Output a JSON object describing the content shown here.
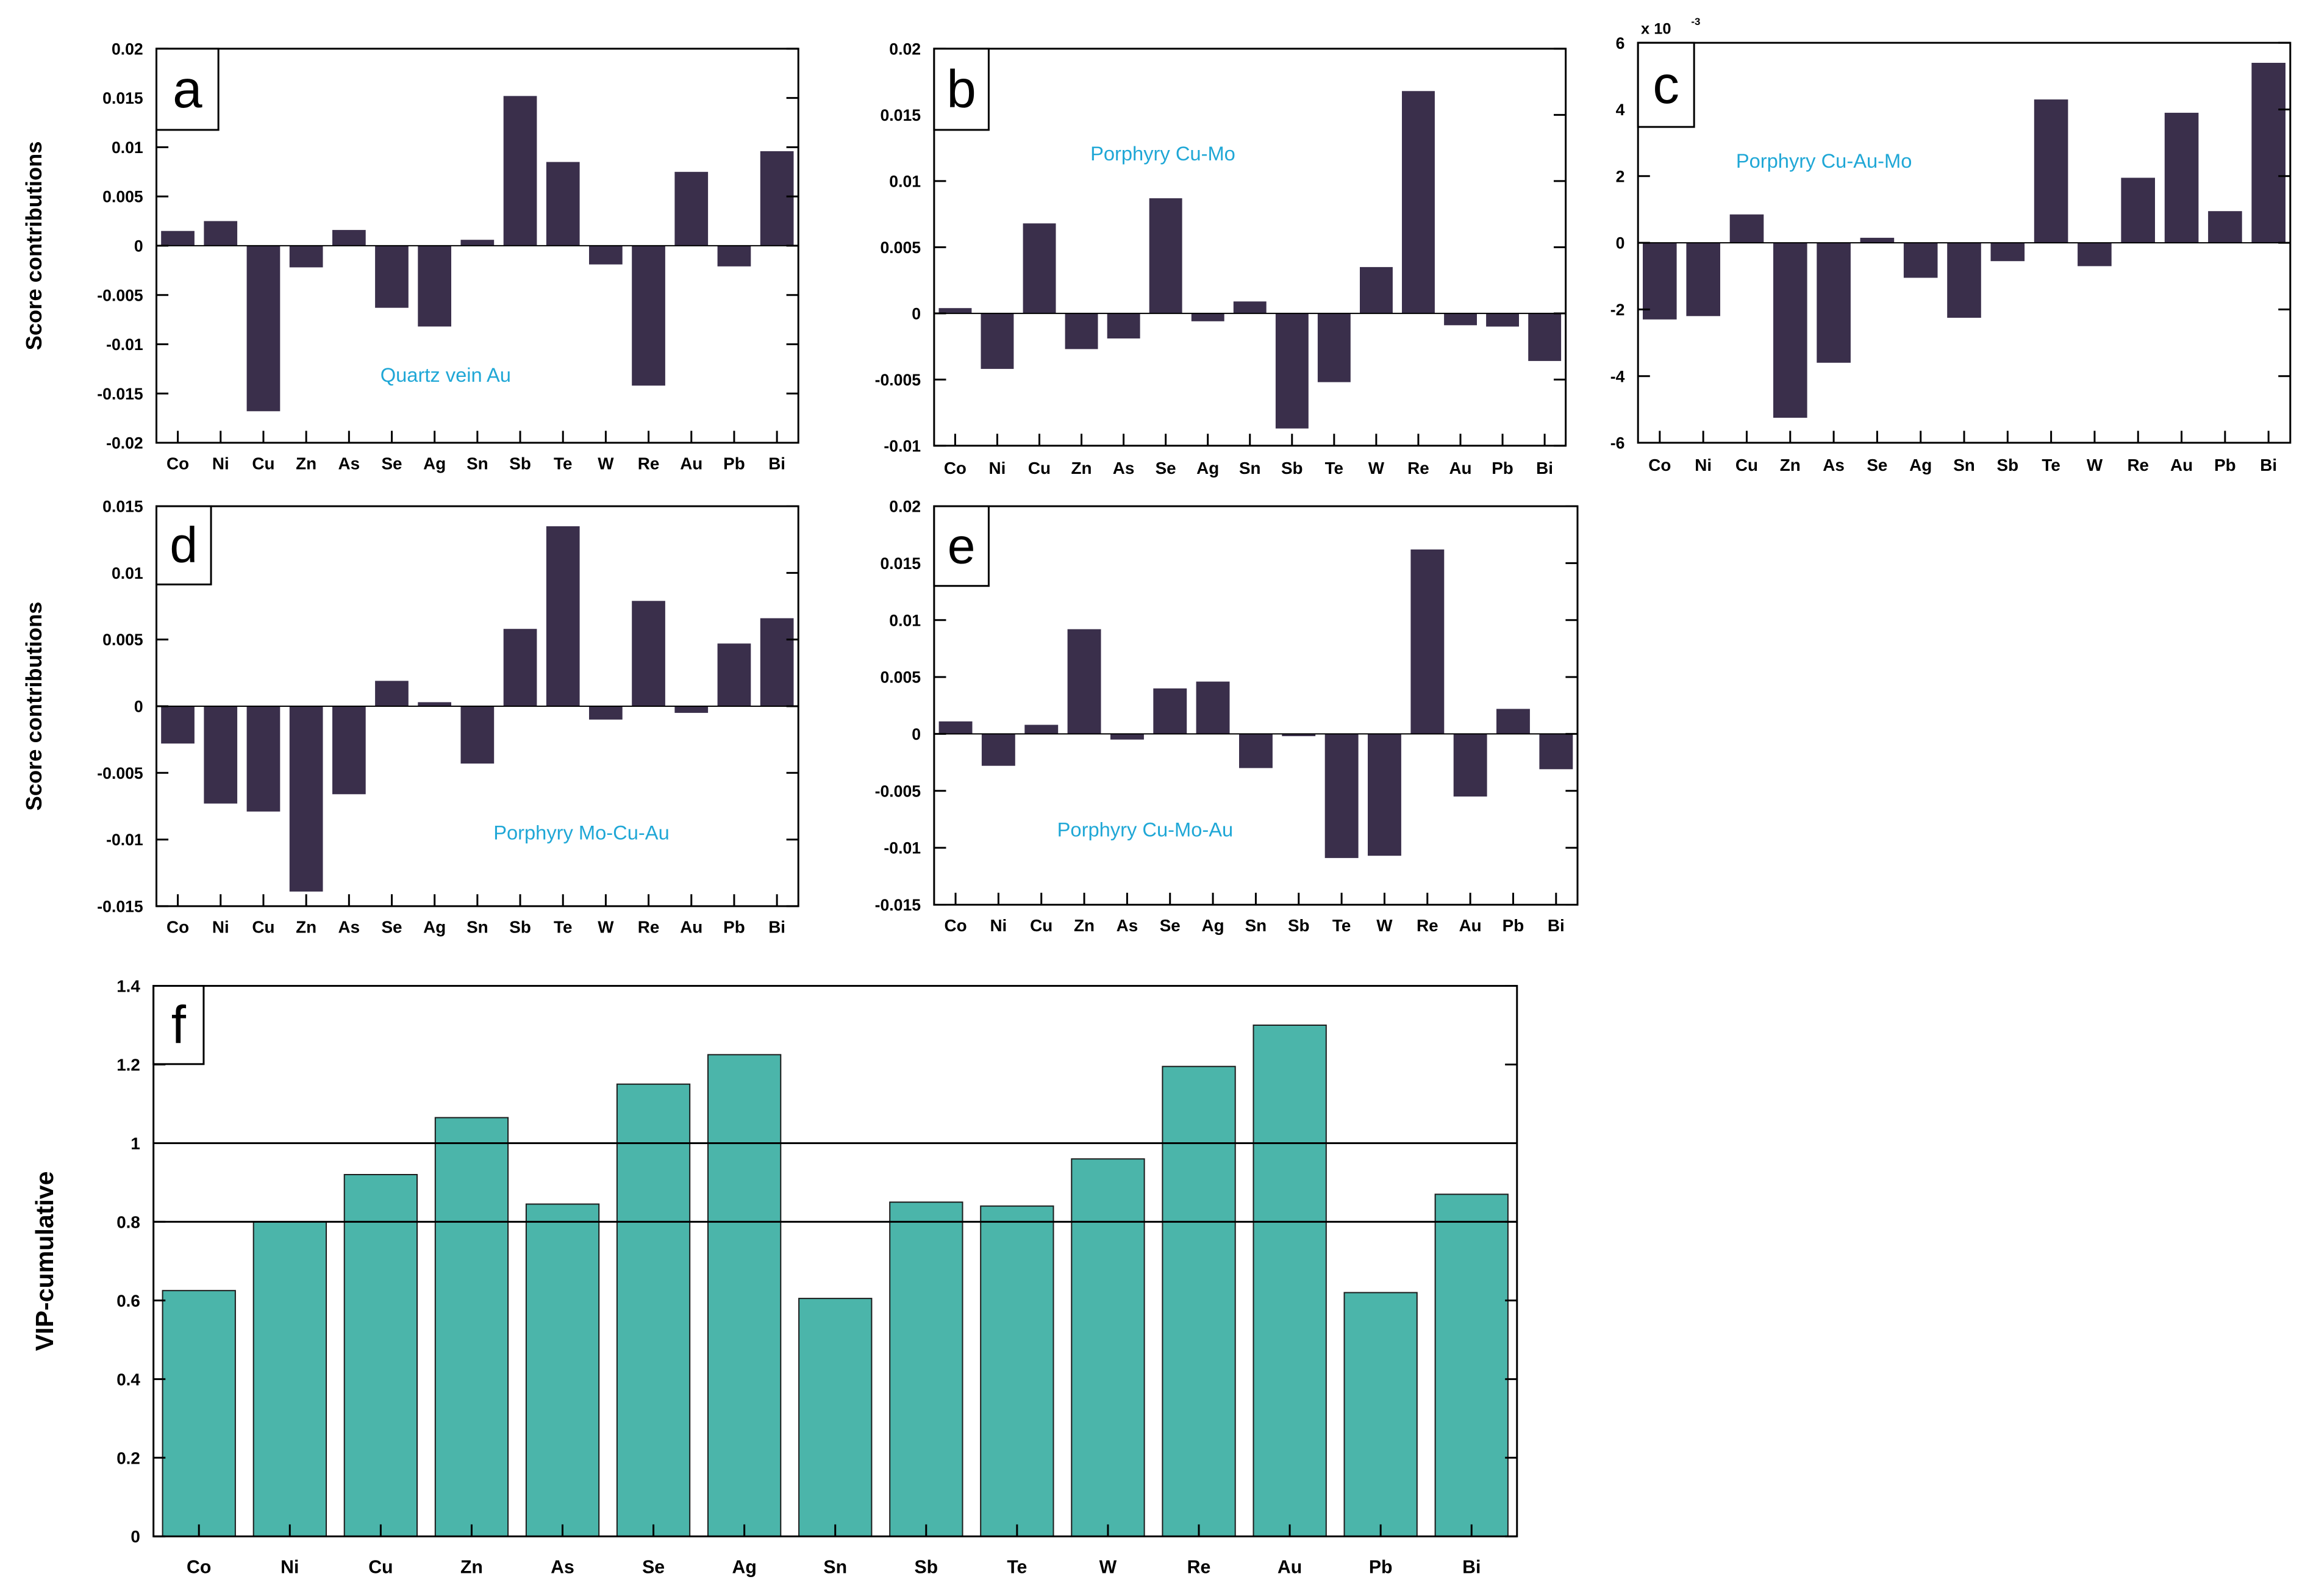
{
  "colors": {
    "dark_bar": "#3a2f4b",
    "teal_bar": "#4bb5aa",
    "annotation": "#1fa7d6"
  },
  "chart_data": [
    {
      "id": "a",
      "type": "bar",
      "panel_label": "a",
      "annotation": "Quartz vein Au",
      "ylabel": "Score contributions",
      "categories": [
        "Co",
        "Ni",
        "Cu",
        "Zn",
        "As",
        "Se",
        "Ag",
        "Sn",
        "Sb",
        "Te",
        "W",
        "Re",
        "Au",
        "Pb",
        "Bi"
      ],
      "values": [
        0.0015,
        0.0025,
        -0.0168,
        -0.0022,
        0.0016,
        -0.0063,
        -0.0082,
        0.0006,
        0.0152,
        0.0085,
        -0.0019,
        -0.0142,
        0.0075,
        -0.0021,
        0.0096
      ],
      "ylim": [
        -0.02,
        0.02
      ],
      "yticks": [
        "0.02",
        "0.015",
        "0.01",
        "0.005",
        "0",
        "-0.005",
        "-0.01",
        "-0.015",
        "-0.02"
      ]
    },
    {
      "id": "b",
      "type": "bar",
      "panel_label": "b",
      "annotation": "Porphyry Cu-Mo",
      "ylabel": "",
      "categories": [
        "Co",
        "Ni",
        "Cu",
        "Zn",
        "As",
        "Se",
        "Ag",
        "Sn",
        "Sb",
        "Te",
        "W",
        "Re",
        "Au",
        "Pb",
        "Bi"
      ],
      "values": [
        0.0004,
        -0.0042,
        0.0068,
        -0.0027,
        -0.0019,
        0.0087,
        -0.0006,
        0.0009,
        -0.0087,
        -0.0052,
        0.0035,
        0.0168,
        -0.0009,
        -0.001,
        -0.0036
      ],
      "ylim": [
        -0.01,
        0.02
      ],
      "yticks": [
        "0.02",
        "0.015",
        "0.01",
        "0.005",
        "0",
        "-0.005",
        "-0.01"
      ]
    },
    {
      "id": "c",
      "type": "bar",
      "panel_label": "c",
      "annotation": "Porphyry Cu-Au-Mo",
      "ylabel": "",
      "exponent_label": "x 10",
      "exponent_power": "-3",
      "categories": [
        "Co",
        "Ni",
        "Cu",
        "Zn",
        "As",
        "Se",
        "Ag",
        "Sn",
        "Sb",
        "Te",
        "W",
        "Re",
        "Au",
        "Pb",
        "Bi"
      ],
      "values": [
        -2.3,
        -2.2,
        0.85,
        -5.25,
        -3.6,
        0.15,
        -1.05,
        -2.25,
        -0.55,
        4.3,
        -0.7,
        1.95,
        3.9,
        0.95,
        5.4
      ],
      "ylim": [
        -6,
        6
      ],
      "yticks": [
        "6",
        "4",
        "2",
        "0",
        "-2",
        "-4",
        "-6"
      ]
    },
    {
      "id": "d",
      "type": "bar",
      "panel_label": "d",
      "annotation": "Porphyry Mo-Cu-Au",
      "ylabel": "Score contributions",
      "categories": [
        "Co",
        "Ni",
        "Cu",
        "Zn",
        "As",
        "Se",
        "Ag",
        "Sn",
        "Sb",
        "Te",
        "W",
        "Re",
        "Au",
        "Pb",
        "Bi"
      ],
      "values": [
        -0.0028,
        -0.0073,
        -0.0079,
        -0.0139,
        -0.0066,
        0.0019,
        0.0003,
        -0.0043,
        0.0058,
        0.0135,
        -0.001,
        0.0079,
        -0.0005,
        0.0047,
        0.0066
      ],
      "ylim": [
        -0.015,
        0.015
      ],
      "yticks": [
        "0.015",
        "0.01",
        "0.005",
        "0",
        "-0.005",
        "-0.01",
        "-0.015"
      ]
    },
    {
      "id": "e",
      "type": "bar",
      "panel_label": "e",
      "annotation": "Porphyry Cu-Mo-Au",
      "ylabel": "",
      "categories": [
        "Co",
        "Ni",
        "Cu",
        "Zn",
        "As",
        "Se",
        "Ag",
        "Sn",
        "Sb",
        "Te",
        "W",
        "Re",
        "Au",
        "Pb",
        "Bi"
      ],
      "values": [
        0.0011,
        -0.0028,
        0.0008,
        0.0092,
        -0.0005,
        0.004,
        0.0046,
        -0.003,
        -0.0002,
        -0.0109,
        -0.0107,
        0.0162,
        -0.0055,
        0.0022,
        -0.0031
      ],
      "ylim": [
        -0.015,
        0.02
      ],
      "yticks": [
        "0.02",
        "0.015",
        "0.01",
        "0.005",
        "0",
        "-0.005",
        "-0.01",
        "-0.015"
      ]
    },
    {
      "id": "f",
      "type": "bar",
      "panel_label": "f",
      "annotation": "",
      "ylabel": "VIP-cumulative",
      "categories": [
        "Co",
        "Ni",
        "Cu",
        "Zn",
        "As",
        "Se",
        "Ag",
        "Sn",
        "Sb",
        "Te",
        "W",
        "Re",
        "Au",
        "Pb",
        "Bi"
      ],
      "values": [
        0.625,
        0.8,
        0.92,
        1.065,
        0.845,
        1.15,
        1.225,
        0.605,
        0.85,
        0.84,
        0.96,
        1.195,
        1.3,
        0.62,
        0.87
      ],
      "ylim": [
        0,
        1.4
      ],
      "yticks": [
        "1.4",
        "1.2",
        "1",
        "0.8",
        "0.6",
        "0.4",
        "0.2",
        "0"
      ],
      "reference_lines": [
        1.0,
        0.8
      ]
    }
  ]
}
